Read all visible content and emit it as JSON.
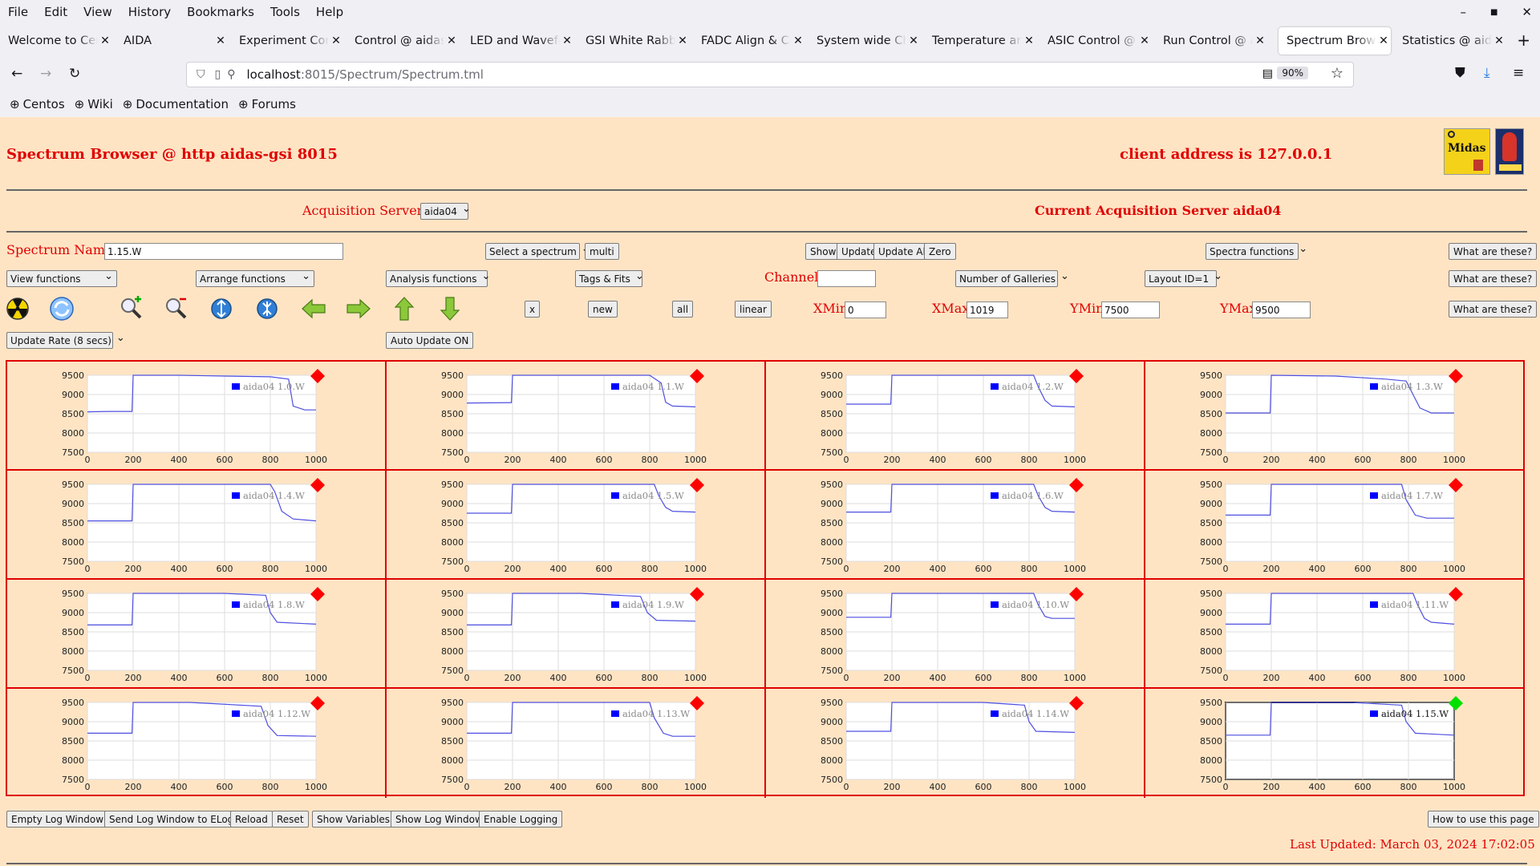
{
  "menu": [
    "File",
    "Edit",
    "View",
    "History",
    "Bookmarks",
    "Tools",
    "Help"
  ],
  "tabs": [
    {
      "label": "Welcome to Centos",
      "x": 0,
      "w": 140
    },
    {
      "label": "AIDA",
      "x": 144,
      "w": 140
    },
    {
      "label": "Experiment Control",
      "x": 288,
      "w": 140
    },
    {
      "label": "Control @ aidas-gsi",
      "x": 432,
      "w": 140
    },
    {
      "label": "LED and Waveform",
      "x": 576,
      "w": 140
    },
    {
      "label": "GSI White Rabbit",
      "x": 720,
      "w": 140
    },
    {
      "label": "FADC Align & Control",
      "x": 864,
      "w": 140
    },
    {
      "label": "System wide Checks",
      "x": 1008,
      "w": 140
    },
    {
      "label": "Temperature and",
      "x": 1152,
      "w": 140
    },
    {
      "label": "ASIC Control @ aidas",
      "x": 1296,
      "w": 140
    },
    {
      "label": "Run Control @ aidas",
      "x": 1440,
      "w": 140
    },
    {
      "label": "Spectrum Browser",
      "x": 1594,
      "w": 140,
      "active": true
    },
    {
      "label": "Statistics @ aidas",
      "x": 1738,
      "w": 140
    }
  ],
  "url": {
    "host": "localhost",
    "rest": ":8015/Spectrum/Spectrum.tml",
    "zoom": "90%"
  },
  "bookmarks": [
    "Centos",
    "Wiki",
    "Documentation",
    "Forums"
  ],
  "header": {
    "title": "Spectrum Browser @ http aidas-gsi 8015",
    "client": "client address is 127.0.0.1"
  },
  "acq": {
    "label": "Acquisition Servers",
    "selected": "aida04",
    "current": "Current Acquisition Server aida04"
  },
  "controls": {
    "spectrum_name_label": "Spectrum Name:",
    "spectrum_name": "1.15.W",
    "select_spectrum": "Select a spectrum",
    "multi": "multi",
    "show": "Show",
    "update": "Update",
    "update_all": "Update All",
    "zero": "Zero",
    "spectra_functions": "Spectra functions",
    "what": "What are these?",
    "view_functions": "View functions",
    "arrange_functions": "Arrange functions",
    "analysis_functions": "Analysis functions",
    "tags_fits": "Tags & Fits",
    "channel_label": "Channel:",
    "channel": "",
    "galleries": "Number of Galleries",
    "layout": "Layout ID=1",
    "x_btn": "x",
    "new_btn": "new",
    "all_btn": "all",
    "linear_btn": "linear",
    "xmin_label": "XMin",
    "xmin": "0",
    "xmax_label": "XMax",
    "xmax": "1019",
    "ymin_label": "YMin",
    "ymin": "7500",
    "ymax_label": "YMax",
    "ymax": "9500",
    "update_rate": "Update Rate (8 secs)",
    "auto_update": "Auto Update ON"
  },
  "icons": [
    "radiation-icon",
    "refresh-icon",
    "zoom-in-icon",
    "zoom-out-icon",
    "expand-y-icon",
    "compress-y-icon",
    "left-arrow-icon",
    "right-arrow-icon",
    "up-arrow-icon",
    "down-arrow-icon"
  ],
  "colors": {
    "line": "#4f4fe0",
    "legend": "#0000ff",
    "marker_off": "#ff0000",
    "marker_on": "#00e000",
    "accent": "#e00000"
  },
  "chart_data": {
    "type": "line",
    "xlim": [
      0,
      1000
    ],
    "ylim": [
      7500,
      9500
    ],
    "x_ticks": [
      0,
      200,
      400,
      600,
      800,
      1000
    ],
    "y_ticks": [
      9500,
      9000,
      8500,
      8000,
      7500
    ],
    "grid": true,
    "galleries": [
      {
        "name": "aida04 1.0.W",
        "points": [
          [
            0,
            8550
          ],
          [
            100,
            8560
          ],
          [
            195,
            8560
          ],
          [
            200,
            9500
          ],
          [
            400,
            9500
          ],
          [
            600,
            9480
          ],
          [
            800,
            9460
          ],
          [
            880,
            9400
          ],
          [
            900,
            8700
          ],
          [
            950,
            8600
          ],
          [
            1000,
            8600
          ]
        ],
        "selected": false
      },
      {
        "name": "aida04 1.1.W",
        "points": [
          [
            0,
            8780
          ],
          [
            195,
            8790
          ],
          [
            200,
            9500
          ],
          [
            800,
            9500
          ],
          [
            850,
            9300
          ],
          [
            870,
            8800
          ],
          [
            900,
            8700
          ],
          [
            1000,
            8680
          ]
        ],
        "selected": false
      },
      {
        "name": "aida04 1.2.W",
        "points": [
          [
            0,
            8750
          ],
          [
            195,
            8750
          ],
          [
            200,
            9500
          ],
          [
            820,
            9500
          ],
          [
            840,
            9200
          ],
          [
            870,
            8850
          ],
          [
            900,
            8700
          ],
          [
            1000,
            8680
          ]
        ],
        "selected": false
      },
      {
        "name": "aida04 1.3.W",
        "points": [
          [
            0,
            8520
          ],
          [
            195,
            8520
          ],
          [
            200,
            9500
          ],
          [
            480,
            9480
          ],
          [
            700,
            9400
          ],
          [
            790,
            9350
          ],
          [
            820,
            9000
          ],
          [
            850,
            8650
          ],
          [
            900,
            8520
          ],
          [
            1000,
            8520
          ]
        ],
        "selected": false
      },
      {
        "name": "aida04 1.4.W",
        "points": [
          [
            0,
            8550
          ],
          [
            195,
            8550
          ],
          [
            200,
            9500
          ],
          [
            800,
            9500
          ],
          [
            820,
            9300
          ],
          [
            850,
            8800
          ],
          [
            900,
            8600
          ],
          [
            1000,
            8550
          ]
        ],
        "selected": false
      },
      {
        "name": "aida04 1.5.W",
        "points": [
          [
            0,
            8750
          ],
          [
            195,
            8750
          ],
          [
            200,
            9500
          ],
          [
            820,
            9500
          ],
          [
            840,
            9200
          ],
          [
            870,
            8900
          ],
          [
            900,
            8800
          ],
          [
            1000,
            8780
          ]
        ],
        "selected": false
      },
      {
        "name": "aida04 1.6.W",
        "points": [
          [
            0,
            8780
          ],
          [
            195,
            8780
          ],
          [
            200,
            9500
          ],
          [
            820,
            9500
          ],
          [
            840,
            9200
          ],
          [
            870,
            8900
          ],
          [
            900,
            8800
          ],
          [
            1000,
            8780
          ]
        ],
        "selected": false
      },
      {
        "name": "aida04 1.7.W",
        "points": [
          [
            0,
            8700
          ],
          [
            195,
            8700
          ],
          [
            200,
            9500
          ],
          [
            770,
            9500
          ],
          [
            790,
            9100
          ],
          [
            830,
            8700
          ],
          [
            880,
            8620
          ],
          [
            1000,
            8620
          ]
        ],
        "selected": false
      },
      {
        "name": "aida04 1.8.W",
        "points": [
          [
            0,
            8680
          ],
          [
            195,
            8680
          ],
          [
            200,
            9500
          ],
          [
            600,
            9500
          ],
          [
            780,
            9450
          ],
          [
            800,
            9000
          ],
          [
            830,
            8750
          ],
          [
            1000,
            8700
          ]
        ],
        "selected": false
      },
      {
        "name": "aida04 1.9.W",
        "points": [
          [
            0,
            8680
          ],
          [
            195,
            8680
          ],
          [
            200,
            9500
          ],
          [
            500,
            9500
          ],
          [
            760,
            9420
          ],
          [
            790,
            9000
          ],
          [
            830,
            8800
          ],
          [
            1000,
            8780
          ]
        ],
        "selected": false
      },
      {
        "name": "aida04 1.10.W",
        "points": [
          [
            0,
            8880
          ],
          [
            195,
            8880
          ],
          [
            200,
            9500
          ],
          [
            820,
            9500
          ],
          [
            840,
            9200
          ],
          [
            870,
            8900
          ],
          [
            900,
            8850
          ],
          [
            1000,
            8850
          ]
        ],
        "selected": false
      },
      {
        "name": "aida04 1.11.W",
        "points": [
          [
            0,
            8700
          ],
          [
            195,
            8700
          ],
          [
            200,
            9500
          ],
          [
            820,
            9500
          ],
          [
            840,
            9200
          ],
          [
            870,
            8850
          ],
          [
            900,
            8750
          ],
          [
            1000,
            8700
          ]
        ],
        "selected": false
      },
      {
        "name": "aida04 1.12.W",
        "points": [
          [
            0,
            8700
          ],
          [
            195,
            8700
          ],
          [
            200,
            9500
          ],
          [
            450,
            9500
          ],
          [
            760,
            9400
          ],
          [
            790,
            8900
          ],
          [
            830,
            8640
          ],
          [
            1000,
            8620
          ]
        ],
        "selected": false
      },
      {
        "name": "aida04 1.13.W",
        "points": [
          [
            0,
            8700
          ],
          [
            195,
            8700
          ],
          [
            200,
            9500
          ],
          [
            800,
            9500
          ],
          [
            820,
            9100
          ],
          [
            860,
            8700
          ],
          [
            900,
            8620
          ],
          [
            1000,
            8620
          ]
        ],
        "selected": false
      },
      {
        "name": "aida04 1.14.W",
        "points": [
          [
            0,
            8750
          ],
          [
            195,
            8750
          ],
          [
            200,
            9500
          ],
          [
            600,
            9500
          ],
          [
            780,
            9430
          ],
          [
            800,
            9000
          ],
          [
            830,
            8750
          ],
          [
            1000,
            8720
          ]
        ],
        "selected": false
      },
      {
        "name": "aida04 1.15.W",
        "points": [
          [
            0,
            8650
          ],
          [
            195,
            8650
          ],
          [
            200,
            9500
          ],
          [
            550,
            9500
          ],
          [
            770,
            9430
          ],
          [
            790,
            9000
          ],
          [
            830,
            8700
          ],
          [
            1000,
            8650
          ]
        ],
        "selected": true
      }
    ]
  },
  "footer": {
    "buttons": [
      "Empty Log Window",
      "Send Log Window to ELog",
      "Reload",
      "Reset",
      "Show Variables",
      "Show Log Window",
      "Enable Logging"
    ],
    "howto": "How to use this page",
    "last_updated": "Last Updated: March 03, 2024 17:02:05"
  }
}
